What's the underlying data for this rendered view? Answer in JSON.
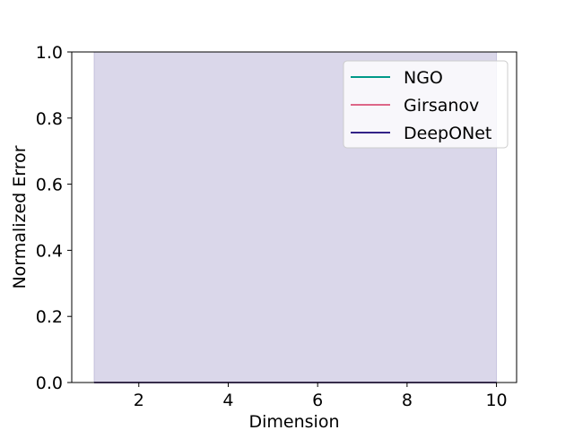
{
  "chart_data": {
    "type": "line",
    "title": "",
    "xlabel": "Dimension",
    "ylabel": "Normalized Error",
    "xlim": [
      0.5,
      10.45
    ],
    "ylim": [
      0.0,
      1.0
    ],
    "xticks": [
      2,
      4,
      6,
      8,
      10
    ],
    "yticks": [
      0.0,
      0.2,
      0.4,
      0.6,
      0.8,
      1.0
    ],
    "grid": false,
    "legend_placement": "top-right",
    "x": [
      1,
      2,
      3,
      4,
      5,
      6,
      7,
      8,
      9,
      10
    ],
    "series": [
      {
        "name": "NGO",
        "color": "#009988",
        "values": [
          0,
          0,
          0,
          0,
          0,
          0,
          0,
          0,
          0,
          0
        ]
      },
      {
        "name": "Girsanov",
        "color": "#dd6688",
        "values": [
          0,
          0,
          0,
          0,
          0,
          0,
          0,
          0,
          0,
          0
        ]
      },
      {
        "name": "DeepONet",
        "color": "#332288",
        "values": [
          0,
          0,
          0,
          0,
          0,
          0,
          0,
          0,
          0,
          0
        ]
      }
    ],
    "bands": [
      {
        "series": "DeepONet",
        "color": "#332288",
        "alpha": 0.18,
        "x_range": [
          1,
          10
        ],
        "lower": 0.0,
        "upper": 1.0
      }
    ]
  }
}
